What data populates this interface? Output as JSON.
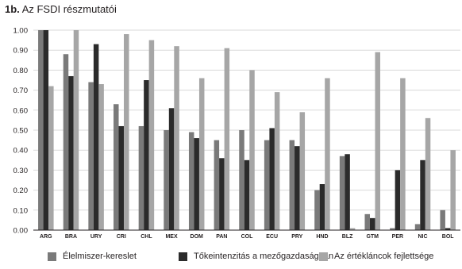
{
  "title_num": "1b.",
  "title_text": "Az FSDI részmutatói",
  "colors": {
    "food": "#7a7a7a",
    "capital": "#2b2b2b",
    "value": "#a6a6a6"
  },
  "chart_data": {
    "type": "bar",
    "title": "1b. Az FSDI részmutatói",
    "xlabel": "",
    "ylabel": "",
    "ylim": [
      0,
      1
    ],
    "yticks": [
      "0.00",
      "0.10",
      "0.20",
      "0.30",
      "0.40",
      "0.50",
      "0.60",
      "0.70",
      "0.80",
      "0.90",
      "1.00"
    ],
    "grid": true,
    "legend": "bottom",
    "categories": [
      "ARG",
      "BRA",
      "URY",
      "CRI",
      "CHL",
      "MEX",
      "DOM",
      "PAN",
      "COL",
      "ECU",
      "PRY",
      "HND",
      "BLZ",
      "GTM",
      "PER",
      "NIC",
      "BOL"
    ],
    "series": [
      {
        "name": "Élelmiszer-kereslet",
        "color": "#7a7a7a",
        "values": [
          1.0,
          0.88,
          0.74,
          0.63,
          0.52,
          0.5,
          0.49,
          0.45,
          0.5,
          0.45,
          0.45,
          0.2,
          0.37,
          0.08,
          0.01,
          0.03,
          0.1
        ]
      },
      {
        "name": "Tőkeintenzitás a mezőgazdaságban",
        "color": "#2b2b2b",
        "values": [
          1.0,
          0.77,
          0.93,
          0.52,
          0.75,
          0.61,
          0.46,
          0.36,
          0.35,
          0.51,
          0.42,
          0.23,
          0.38,
          0.06,
          0.3,
          0.35,
          0.01
        ]
      },
      {
        "name": "Az értékláncok fejlettsége",
        "color": "#a6a6a6",
        "values": [
          0.72,
          1.0,
          0.73,
          0.98,
          0.95,
          0.92,
          0.76,
          0.91,
          0.8,
          0.69,
          0.59,
          0.76,
          0.01,
          0.89,
          0.76,
          0.56,
          0.4
        ]
      }
    ]
  }
}
